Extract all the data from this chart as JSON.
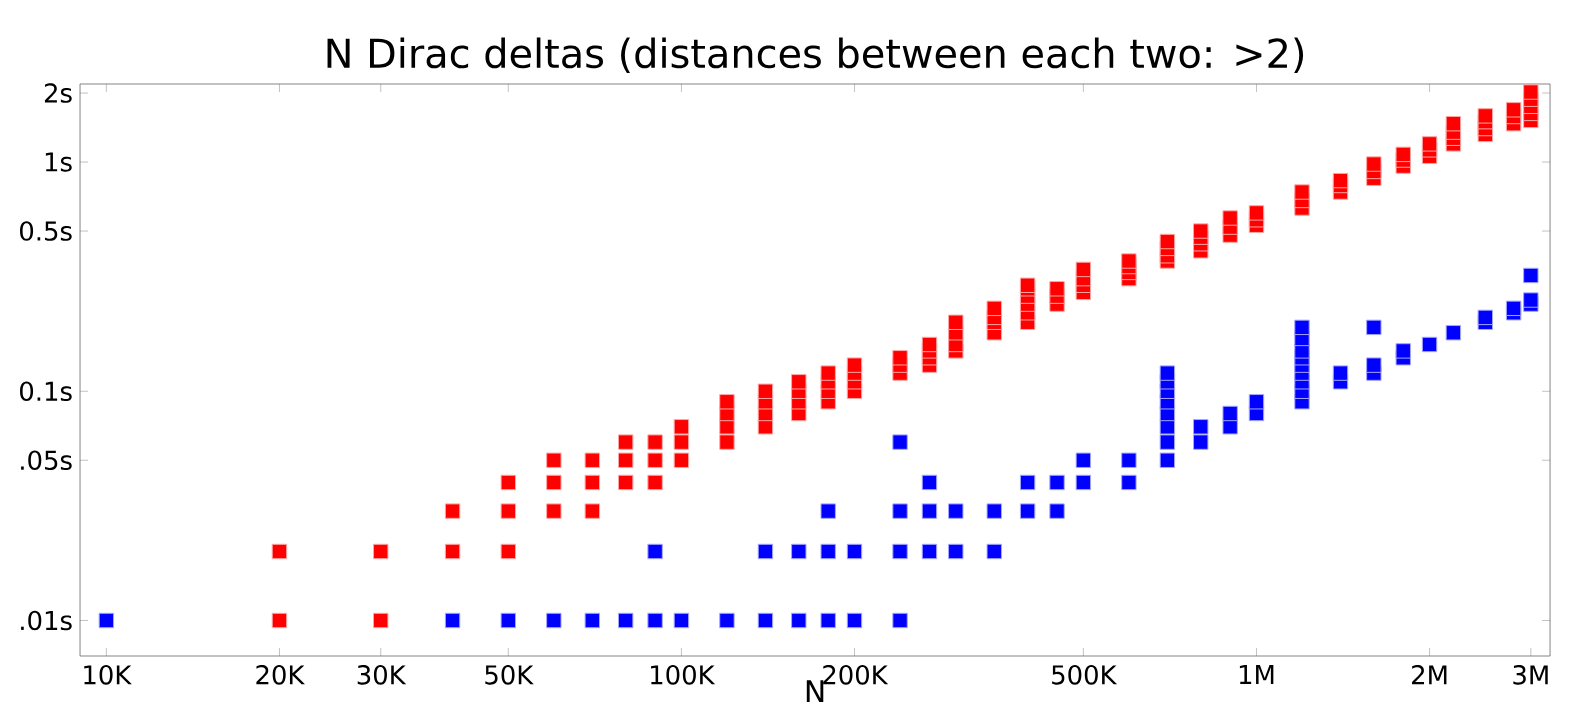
{
  "chart_data": {
    "type": "scatter",
    "title": "N Dirac deltas (distances between each two: >2)",
    "xlabel": "N",
    "log": "xy",
    "marker": "square",
    "grid": false,
    "xlim": [
      9000,
      3240000
    ],
    "ylim": [
      0.007,
      2.19
    ],
    "xticks": [
      {
        "value": 10000,
        "label": "10K"
      },
      {
        "value": 20000,
        "label": "20K"
      },
      {
        "value": 30000,
        "label": "30K"
      },
      {
        "value": 50000,
        "label": "50K"
      },
      {
        "value": 100000,
        "label": "100K"
      },
      {
        "value": 200000,
        "label": "200K"
      },
      {
        "value": 500000,
        "label": "500K"
      },
      {
        "value": 1000000,
        "label": "1M"
      },
      {
        "value": 2000000,
        "label": "2M"
      },
      {
        "value": 3000000,
        "label": "3M"
      }
    ],
    "yticks": [
      {
        "value": 0.01,
        "label": ".01s"
      },
      {
        "value": 0.05,
        "label": ".05s"
      },
      {
        "value": 0.1,
        "label": "0.1s"
      },
      {
        "value": 0.5,
        "label": "0.5s"
      },
      {
        "value": 1,
        "label": "1s"
      },
      {
        "value": 2,
        "label": "2s"
      }
    ],
    "series": [
      {
        "color": "#ff0000",
        "x": [
          20000,
          20000,
          30000,
          30000,
          40000,
          40000,
          50000,
          50000,
          50000,
          60000,
          60000,
          60000,
          70000,
          70000,
          70000,
          80000,
          80000,
          80000,
          90000,
          90000,
          90000,
          100000,
          100000,
          100000,
          120000,
          120000,
          120000,
          120000,
          140000,
          140000,
          140000,
          140000,
          160000,
          160000,
          160000,
          160000,
          180000,
          180000,
          180000,
          180000,
          200000,
          200000,
          200000,
          200000,
          240000,
          240000,
          240000,
          270000,
          270000,
          270000,
          270000,
          300000,
          300000,
          300000,
          300000,
          350000,
          350000,
          350000,
          350000,
          400000,
          400000,
          400000,
          400000,
          400000,
          400000,
          450000,
          450000,
          450000,
          500000,
          500000,
          500000,
          500000,
          600000,
          600000,
          600000,
          600000,
          700000,
          700000,
          700000,
          700000,
          800000,
          800000,
          800000,
          800000,
          900000,
          900000,
          900000,
          1000000,
          1000000,
          1000000,
          1200000,
          1200000,
          1200000,
          1400000,
          1400000,
          1400000,
          1600000,
          1600000,
          1600000,
          1800000,
          1800000,
          1800000,
          2000000,
          2000000,
          2000000,
          2200000,
          2200000,
          2200000,
          2200000,
          2500000,
          2500000,
          2500000,
          2500000,
          2800000,
          2800000,
          2800000,
          3000000,
          3000000,
          3000000,
          3000000,
          3000000
        ],
        "values": [
          0.01,
          0.02,
          0.01,
          0.02,
          0.02,
          0.03,
          0.02,
          0.03,
          0.04,
          0.03,
          0.04,
          0.05,
          0.03,
          0.04,
          0.05,
          0.04,
          0.05,
          0.06,
          0.04,
          0.05,
          0.06,
          0.05,
          0.06,
          0.07,
          0.06,
          0.07,
          0.08,
          0.09,
          0.07,
          0.08,
          0.09,
          0.1,
          0.08,
          0.09,
          0.1,
          0.11,
          0.09,
          0.1,
          0.11,
          0.12,
          0.1,
          0.11,
          0.12,
          0.13,
          0.12,
          0.13,
          0.14,
          0.13,
          0.14,
          0.15,
          0.16,
          0.15,
          0.16,
          0.18,
          0.2,
          0.18,
          0.2,
          0.21,
          0.23,
          0.2,
          0.22,
          0.24,
          0.26,
          0.28,
          0.29,
          0.24,
          0.26,
          0.28,
          0.27,
          0.29,
          0.31,
          0.34,
          0.31,
          0.33,
          0.35,
          0.37,
          0.37,
          0.39,
          0.42,
          0.45,
          0.41,
          0.44,
          0.47,
          0.5,
          0.48,
          0.52,
          0.57,
          0.53,
          0.56,
          0.6,
          0.63,
          0.68,
          0.74,
          0.74,
          0.79,
          0.83,
          0.85,
          0.91,
          0.98,
          0.96,
          1.02,
          1.08,
          1.06,
          1.13,
          1.2,
          1.2,
          1.27,
          1.35,
          1.47,
          1.32,
          1.4,
          1.5,
          1.59,
          1.47,
          1.58,
          1.69,
          1.52,
          1.63,
          1.75,
          1.88,
          2.02
        ]
      },
      {
        "color": "#0000ff",
        "x": [
          10000,
          40000,
          50000,
          60000,
          70000,
          80000,
          90000,
          100000,
          120000,
          140000,
          160000,
          180000,
          200000,
          240000,
          90000,
          140000,
          160000,
          180000,
          200000,
          240000,
          270000,
          300000,
          350000,
          180000,
          240000,
          270000,
          300000,
          350000,
          400000,
          450000,
          270000,
          400000,
          450000,
          500000,
          600000,
          240000,
          500000,
          600000,
          700000,
          700000,
          700000,
          700000,
          700000,
          700000,
          700000,
          700000,
          800000,
          800000,
          900000,
          900000,
          1000000,
          1000000,
          1200000,
          1200000,
          1200000,
          1200000,
          1200000,
          1200000,
          1200000,
          1200000,
          1200000,
          1400000,
          1400000,
          1600000,
          1600000,
          1600000,
          1800000,
          1800000,
          2000000,
          2200000,
          2500000,
          2500000,
          2800000,
          2800000,
          3000000,
          3000000,
          3000000
        ],
        "values": [
          0.01,
          0.01,
          0.01,
          0.01,
          0.01,
          0.01,
          0.01,
          0.01,
          0.01,
          0.01,
          0.01,
          0.01,
          0.01,
          0.01,
          0.02,
          0.02,
          0.02,
          0.02,
          0.02,
          0.02,
          0.02,
          0.02,
          0.02,
          0.03,
          0.03,
          0.03,
          0.03,
          0.03,
          0.03,
          0.03,
          0.04,
          0.04,
          0.04,
          0.04,
          0.04,
          0.06,
          0.05,
          0.05,
          0.05,
          0.06,
          0.07,
          0.08,
          0.09,
          0.1,
          0.11,
          0.12,
          0.06,
          0.07,
          0.07,
          0.08,
          0.08,
          0.09,
          0.09,
          0.1,
          0.11,
          0.12,
          0.13,
          0.14,
          0.15,
          0.17,
          0.19,
          0.11,
          0.12,
          0.12,
          0.13,
          0.19,
          0.14,
          0.15,
          0.16,
          0.18,
          0.2,
          0.21,
          0.22,
          0.23,
          0.24,
          0.25,
          0.32
        ]
      }
    ]
  }
}
